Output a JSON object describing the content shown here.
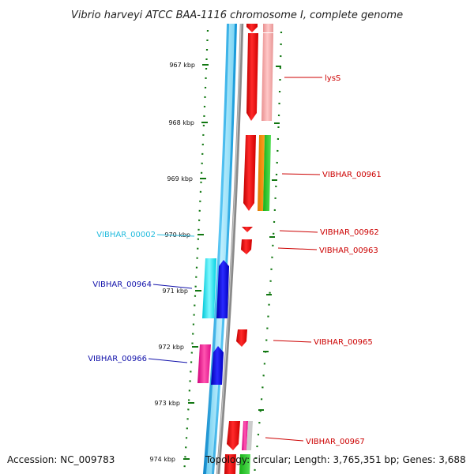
{
  "title": "Vibrio harveyi ATCC BAA-1116 chromosome I, complete genome",
  "footer": {
    "accession": "Accession: NC_009783",
    "topology": "Topology: circular; Length: 3,765,351 bp; Genes: 3,688"
  },
  "ruler": {
    "unit": "kbp",
    "ticks": [
      967,
      968,
      969,
      970,
      971,
      972,
      973,
      974
    ]
  },
  "colors": {
    "forward_cds": "#1aa0e0",
    "forward_cds_light": "#9ee8ff",
    "reverse_cds": "#ee0000",
    "reverse_cds_light": "#f0a0a0",
    "backbone": "#8a8a8a",
    "tick": "#117711",
    "label_cyan": "#22bbdd",
    "label_blue": "#1111aa",
    "label_red": "#cc0000"
  },
  "gene_labels": [
    {
      "name": "lysS",
      "strand": "reverse",
      "color": "#cc0000"
    },
    {
      "name": "VIBHAR_00961",
      "strand": "reverse",
      "color": "#cc0000"
    },
    {
      "name": "VIBHAR_00962",
      "strand": "reverse",
      "color": "#cc0000"
    },
    {
      "name": "VIBHAR_00963",
      "strand": "reverse",
      "color": "#cc0000"
    },
    {
      "name": "VIBHAR_00002",
      "strand": "forward",
      "color": "#22bbdd"
    },
    {
      "name": "VIBHAR_00964",
      "strand": "forward",
      "color": "#1111aa"
    },
    {
      "name": "VIBHAR_00965",
      "strand": "reverse",
      "color": "#cc0000"
    },
    {
      "name": "VIBHAR_00966",
      "strand": "forward",
      "color": "#1111aa"
    },
    {
      "name": "VIBHAR_00967",
      "strand": "reverse",
      "color": "#cc0000"
    }
  ]
}
